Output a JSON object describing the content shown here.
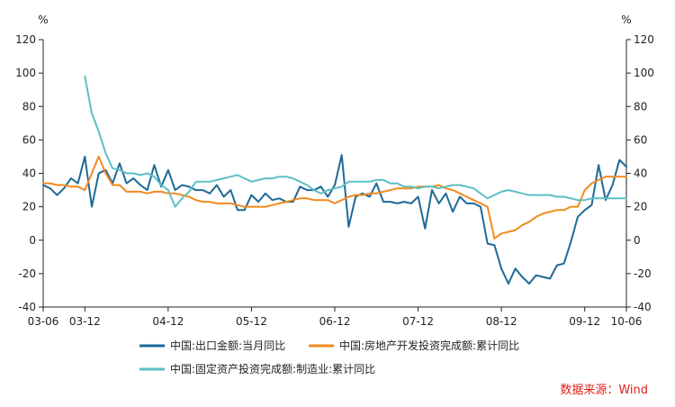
{
  "chart_data": {
    "type": "line",
    "unit_left": "%",
    "unit_right": "%",
    "ylim": [
      -40,
      120
    ],
    "yticks": [
      -40,
      -20,
      0,
      20,
      40,
      60,
      80,
      100,
      120
    ],
    "xlim": [
      "2003-06",
      "2010-06"
    ],
    "x_tick_labels": [
      "03-06",
      "03-12",
      "04-12",
      "05-12",
      "06-12",
      "07-12",
      "08-12",
      "09-12",
      "10-06"
    ],
    "x_tick_months": [
      "2003-06",
      "2003-12",
      "2004-12",
      "2005-12",
      "2006-12",
      "2007-12",
      "2008-12",
      "2009-12",
      "2010-06"
    ],
    "grid": false,
    "legend_position": "bottom",
    "source": "数据来源：Wind",
    "series": [
      {
        "name": "中国:出口金额:当月同比",
        "color": "#1d6a96",
        "x": [
          "2003-06",
          "2003-07",
          "2003-08",
          "2003-09",
          "2003-10",
          "2003-11",
          "2003-12",
          "2004-01",
          "2004-02",
          "2004-03",
          "2004-04",
          "2004-05",
          "2004-06",
          "2004-07",
          "2004-08",
          "2004-09",
          "2004-10",
          "2004-11",
          "2004-12",
          "2005-01",
          "2005-02",
          "2005-03",
          "2005-04",
          "2005-05",
          "2005-06",
          "2005-07",
          "2005-08",
          "2005-09",
          "2005-10",
          "2005-11",
          "2005-12",
          "2006-01",
          "2006-02",
          "2006-03",
          "2006-04",
          "2006-05",
          "2006-06",
          "2006-07",
          "2006-08",
          "2006-09",
          "2006-10",
          "2006-11",
          "2006-12",
          "2007-01",
          "2007-02",
          "2007-03",
          "2007-04",
          "2007-05",
          "2007-06",
          "2007-07",
          "2007-08",
          "2007-09",
          "2007-10",
          "2007-11",
          "2007-12",
          "2008-01",
          "2008-02",
          "2008-03",
          "2008-04",
          "2008-05",
          "2008-06",
          "2008-07",
          "2008-08",
          "2008-09",
          "2008-10",
          "2008-11",
          "2008-12",
          "2009-01",
          "2009-02",
          "2009-03",
          "2009-04",
          "2009-05",
          "2009-06",
          "2009-07",
          "2009-08",
          "2009-09",
          "2009-10",
          "2009-11",
          "2009-12",
          "2010-01",
          "2010-02",
          "2010-03",
          "2010-04",
          "2010-05",
          "2010-06"
        ],
        "values": [
          33,
          31,
          27,
          31,
          37,
          34,
          50,
          20,
          40,
          42,
          34,
          46,
          34,
          37,
          33,
          30,
          45,
          32,
          42,
          30,
          33,
          32,
          30,
          30,
          28,
          33,
          26,
          30,
          18,
          18,
          27,
          23,
          28,
          24,
          25,
          23,
          23,
          32,
          30,
          30,
          32,
          26,
          33,
          51,
          8,
          26,
          28,
          26,
          34,
          23,
          23,
          22,
          23,
          22,
          26,
          7,
          30,
          22,
          28,
          17,
          26,
          22,
          22,
          20,
          -2,
          -3,
          -17,
          -26,
          -17,
          -22,
          -26,
          -21,
          -22,
          -23,
          -15,
          -14,
          -1,
          14,
          18,
          21,
          45,
          24,
          33,
          48,
          44
        ]
      },
      {
        "name": "中国:房地产开发投资完成额:累计同比",
        "color": "#f28a1e",
        "x": [
          "2003-06",
          "2003-07",
          "2003-08",
          "2003-09",
          "2003-10",
          "2003-11",
          "2003-12",
          "2004-01",
          "2004-02",
          "2004-03",
          "2004-04",
          "2004-05",
          "2004-06",
          "2004-07",
          "2004-08",
          "2004-09",
          "2004-10",
          "2004-11",
          "2004-12",
          "2005-01",
          "2005-02",
          "2005-03",
          "2005-04",
          "2005-05",
          "2005-06",
          "2005-07",
          "2005-08",
          "2005-09",
          "2005-10",
          "2005-11",
          "2005-12",
          "2006-01",
          "2006-02",
          "2006-03",
          "2006-04",
          "2006-05",
          "2006-06",
          "2006-07",
          "2006-08",
          "2006-09",
          "2006-10",
          "2006-11",
          "2006-12",
          "2007-01",
          "2007-02",
          "2007-03",
          "2007-04",
          "2007-05",
          "2007-06",
          "2007-07",
          "2007-08",
          "2007-09",
          "2007-10",
          "2007-11",
          "2007-12",
          "2008-01",
          "2008-02",
          "2008-03",
          "2008-04",
          "2008-05",
          "2008-06",
          "2008-07",
          "2008-08",
          "2008-09",
          "2008-10",
          "2008-11",
          "2008-12",
          "2009-01",
          "2009-02",
          "2009-03",
          "2009-04",
          "2009-05",
          "2009-06",
          "2009-07",
          "2009-08",
          "2009-09",
          "2009-10",
          "2009-11",
          "2009-12",
          "2010-01",
          "2010-02",
          "2010-03",
          "2010-04",
          "2010-05",
          "2010-06"
        ],
        "values": [
          34,
          34,
          33,
          33,
          32,
          32,
          30,
          40,
          50,
          40,
          33,
          33,
          29,
          29,
          29,
          28,
          29,
          29,
          28,
          28,
          27,
          26,
          24,
          23,
          23,
          22,
          22,
          22,
          21,
          20,
          20,
          20,
          20,
          21,
          22,
          23,
          24,
          25,
          25,
          24,
          24,
          24,
          22,
          24,
          26,
          27,
          27,
          28,
          28,
          29,
          30,
          31,
          31,
          31,
          32,
          32,
          32,
          33,
          31,
          30,
          28,
          26,
          24,
          22,
          20,
          1,
          4,
          5,
          6,
          9,
          11,
          14,
          16,
          17,
          18,
          18,
          20,
          20,
          30,
          34,
          36,
          38,
          38,
          38,
          38
        ]
      },
      {
        "name": "中国:固定资产投资完成额:制造业:累计同比",
        "color": "#5dbfc4",
        "x": [
          "2003-12",
          "2004-01",
          "2004-02",
          "2004-03",
          "2004-04",
          "2004-05",
          "2004-06",
          "2004-07",
          "2004-08",
          "2004-09",
          "2004-10",
          "2004-11",
          "2004-12",
          "2005-01",
          "2005-02",
          "2005-03",
          "2005-04",
          "2005-05",
          "2005-06",
          "2005-07",
          "2005-08",
          "2005-09",
          "2005-10",
          "2005-11",
          "2005-12",
          "2006-01",
          "2006-02",
          "2006-03",
          "2006-04",
          "2006-05",
          "2006-06",
          "2006-07",
          "2006-08",
          "2006-09",
          "2006-10",
          "2006-11",
          "2006-12",
          "2007-01",
          "2007-02",
          "2007-03",
          "2007-04",
          "2007-05",
          "2007-06",
          "2007-07",
          "2007-08",
          "2007-09",
          "2007-10",
          "2007-11",
          "2007-12",
          "2008-01",
          "2008-02",
          "2008-03",
          "2008-04",
          "2008-05",
          "2008-06",
          "2008-07",
          "2008-08",
          "2008-09",
          "2008-10",
          "2008-11",
          "2008-12",
          "2009-01",
          "2009-02",
          "2009-03",
          "2009-04",
          "2009-05",
          "2009-06",
          "2009-07",
          "2009-08",
          "2009-09",
          "2009-10",
          "2009-11",
          "2009-12",
          "2010-01",
          "2010-02",
          "2010-03",
          "2010-04",
          "2010-05",
          "2010-06"
        ],
        "values": [
          98,
          76,
          65,
          52,
          43,
          42,
          40,
          40,
          39,
          40,
          38,
          33,
          30,
          20,
          25,
          29,
          35,
          35,
          35,
          36,
          37,
          38,
          39,
          37,
          35,
          36,
          37,
          37,
          38,
          38,
          37,
          35,
          33,
          30,
          28,
          30,
          31,
          32,
          35,
          35,
          35,
          35,
          36,
          36,
          34,
          34,
          32,
          32,
          31,
          32,
          32,
          31,
          32,
          33,
          33,
          32,
          31,
          28,
          25,
          27,
          29,
          30,
          29,
          28,
          27,
          27,
          27,
          27,
          26,
          26,
          25,
          24,
          24,
          25,
          25,
          25,
          25,
          25,
          25
        ]
      }
    ]
  }
}
